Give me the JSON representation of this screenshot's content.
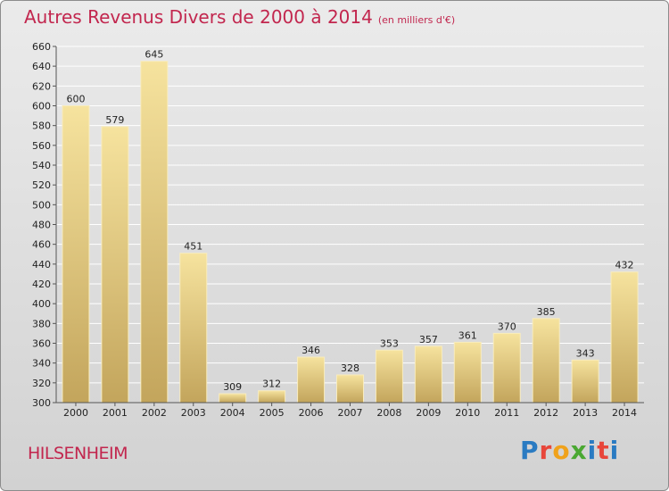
{
  "title": "Autres Revenus Divers de 2000 à 2014",
  "unit_note": "(en milliers d'€)",
  "commune": "HILSENHEIM",
  "logo": {
    "text": "Proxiti",
    "colors": [
      "#2a7bc2",
      "#e8463a",
      "#f0a21b",
      "#4aa832",
      "#2a7bc2",
      "#e8463a",
      "#2a7bc2"
    ]
  },
  "colors": {
    "title": "#c2264e",
    "bar_top": "#f6e39e",
    "bar_bottom": "#c3a55c",
    "axis_text": "#222222",
    "grid": "#ffffff"
  },
  "chart_data": {
    "type": "bar",
    "categories": [
      "2000",
      "2001",
      "2002",
      "2003",
      "2004",
      "2005",
      "2006",
      "2007",
      "2008",
      "2009",
      "2010",
      "2011",
      "2012",
      "2013",
      "2014"
    ],
    "values": [
      600,
      579,
      645,
      451,
      309,
      312,
      346,
      328,
      353,
      357,
      361,
      370,
      385,
      343,
      432
    ],
    "yticks": [
      300,
      320,
      340,
      360,
      380,
      400,
      420,
      440,
      460,
      480,
      500,
      520,
      540,
      560,
      580,
      600,
      620,
      640,
      660
    ],
    "ylim": [
      300,
      660
    ],
    "title": "Autres Revenus Divers de 2000 à 2014",
    "xlabel": "",
    "ylabel": "",
    "grid": true,
    "data_labels": true
  }
}
